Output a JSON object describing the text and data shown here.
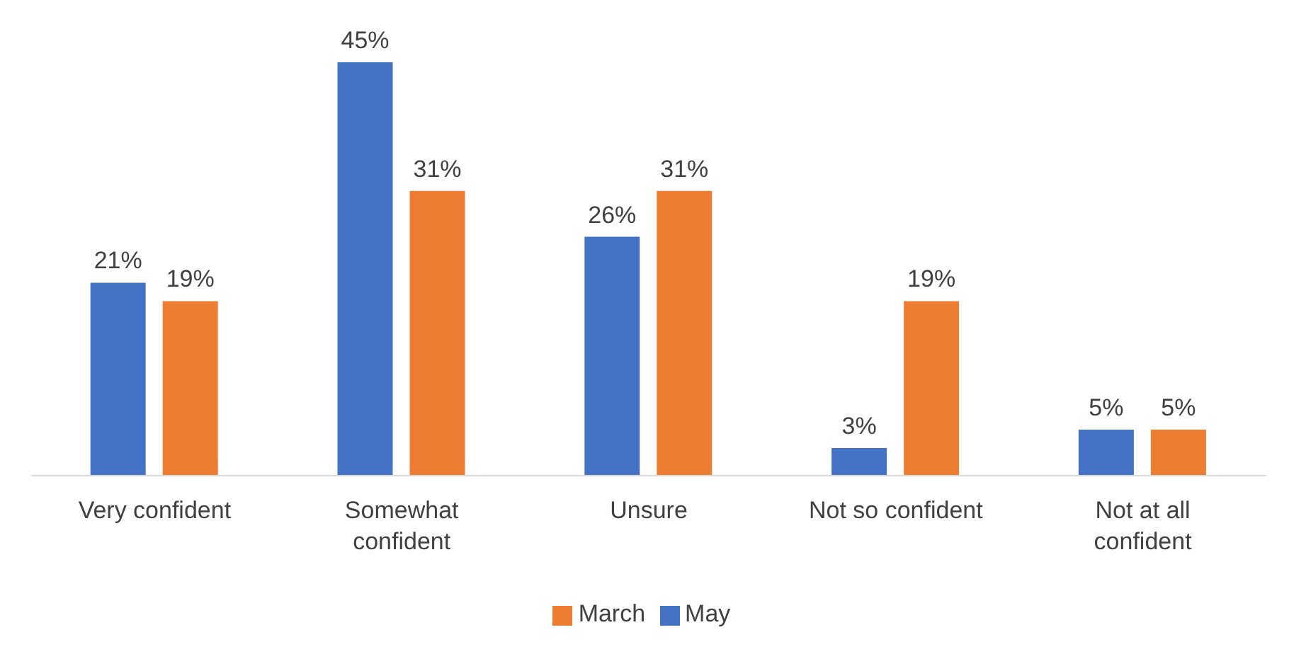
{
  "chart_data": {
    "type": "bar",
    "categories": [
      "Very confident",
      "Somewhat confident",
      "Unsure",
      "Not so confident",
      "Not at all confident"
    ],
    "series": [
      {
        "name": "May",
        "color": "#4472c4",
        "values": [
          21,
          45,
          26,
          3,
          5
        ],
        "value_labels": [
          "21%",
          "45%",
          "26%",
          "3%",
          "5%"
        ]
      },
      {
        "name": "March",
        "color": "#ed7d31",
        "values": [
          19,
          31,
          31,
          19,
          5
        ],
        "value_labels": [
          "19%",
          "31%",
          "31%",
          "19%",
          "5%"
        ]
      }
    ],
    "legend": "bottom"
  }
}
